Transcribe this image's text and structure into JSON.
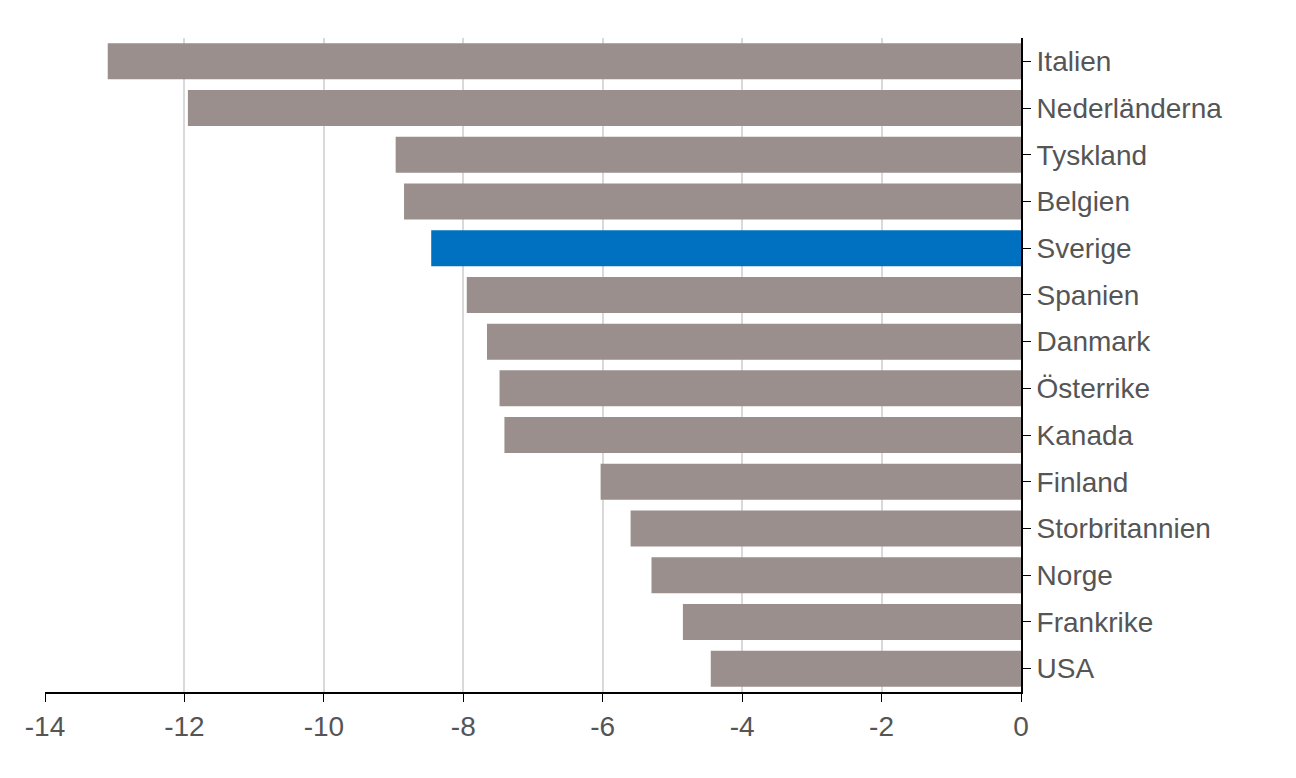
{
  "chart_data": {
    "type": "bar",
    "orientation": "horizontal",
    "categories": [
      "Italien",
      "Nederländerna",
      "Tyskland",
      "Belgien",
      "Sverige",
      "Spanien",
      "Danmark",
      "Österrike",
      "Kanada",
      "Finland",
      "Storbritannien",
      "Norge",
      "Frankrike",
      "USA"
    ],
    "values": [
      -13.1,
      -11.95,
      -8.97,
      -8.85,
      -8.46,
      -7.95,
      -7.66,
      -7.48,
      -7.41,
      -6.03,
      -5.6,
      -5.3,
      -4.85,
      -4.45
    ],
    "colors": [
      "#9a8f8d",
      "#9a8f8d",
      "#9a8f8d",
      "#9a8f8d",
      "#0070c0",
      "#9a8f8d",
      "#9a8f8d",
      "#9a8f8d",
      "#9a8f8d",
      "#9a8f8d",
      "#9a8f8d",
      "#9a8f8d",
      "#9a8f8d",
      "#9a8f8d"
    ],
    "xlim": [
      -14,
      0
    ],
    "xticks": [
      -14,
      -12,
      -10,
      -8,
      -6,
      -4,
      -2,
      0
    ],
    "grid": true
  }
}
